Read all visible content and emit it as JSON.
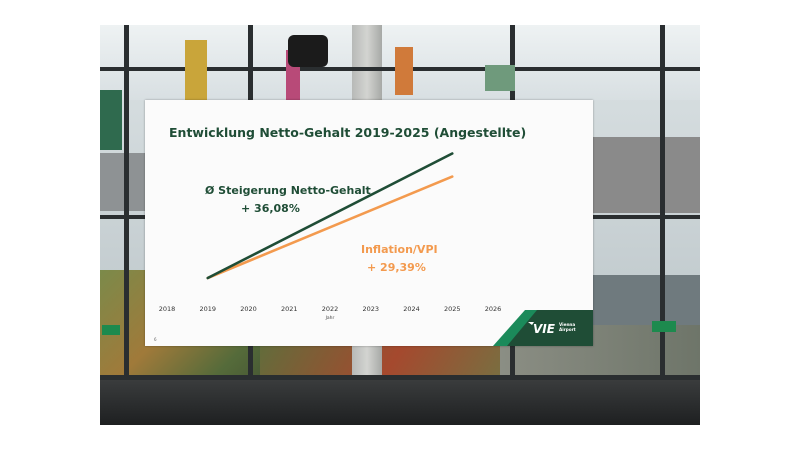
{
  "chart_data": {
    "type": "line",
    "title": "Entwicklung Netto-Gehalt 2019-2025 (Angestellte)",
    "xlabel": "Jahr",
    "ylabel": "",
    "categories": [
      "2018",
      "2019",
      "2020",
      "2021",
      "2022",
      "2023",
      "2024",
      "2025",
      "2026"
    ],
    "xlim": [
      2018,
      2026
    ],
    "ylim": [
      0,
      40
    ],
    "grid": false,
    "series": [
      {
        "name": "Ø Steigerung Netto-Gehalt",
        "color": "#1f4d36",
        "points": [
          [
            2019,
            0
          ],
          [
            2025,
            36.08
          ]
        ],
        "label_value": "+ 36,08%"
      },
      {
        "name": "Inflation/VPI",
        "color": "#f39a4e",
        "points": [
          [
            2019,
            0
          ],
          [
            2025,
            29.39
          ]
        ],
        "label_value": "+ 29,39%"
      }
    ]
  },
  "slide": {
    "page_number": "6"
  },
  "logo": {
    "text": "VIE",
    "subtitle_line1": "Vienna",
    "subtitle_line2": "Airport"
  },
  "colors": {
    "brand_green": "#1f4d36",
    "accent_green": "#1b8a5a",
    "orange": "#f39a4e"
  }
}
